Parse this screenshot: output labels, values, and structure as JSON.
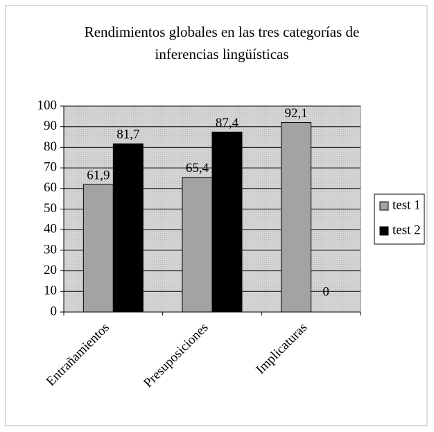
{
  "chart_data": {
    "type": "bar",
    "title": [
      "Rendimientos globales en las  tres categorías  de",
      "inferencias lingüísticas"
    ],
    "categories": [
      "Entrañamientos",
      "Presuposiciones",
      "Implicaturas"
    ],
    "series": [
      {
        "name": "test 1",
        "color": "#a3a3a3",
        "values": [
          61.9,
          65.4,
          92.1
        ],
        "value_labels": [
          "61,9",
          "65,4",
          "92,1"
        ]
      },
      {
        "name": "test 2",
        "color": "#000000",
        "values": [
          81.7,
          87.4,
          0
        ],
        "value_labels": [
          "81,7",
          "87,4",
          "0"
        ]
      }
    ],
    "ylim": [
      0,
      100
    ],
    "yticks": [
      0,
      10,
      20,
      30,
      40,
      50,
      60,
      70,
      80,
      90,
      100
    ],
    "grid": true,
    "legend": "right"
  }
}
